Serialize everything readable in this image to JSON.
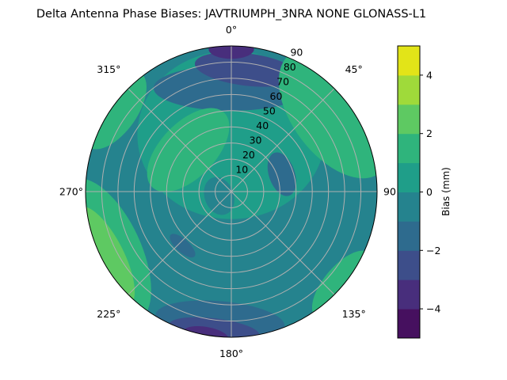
{
  "chart_data": {
    "type": "heatmap",
    "subtype": "polar-contourf",
    "title": "Delta Antenna Phase Biases: JAVTRIUMPH_3NRA NONE GLONASS-L1",
    "angular_ticks": [
      "0°",
      "45°",
      "90",
      "135°",
      "180°",
      "225°",
      "270°",
      "315°"
    ],
    "angular_tick_values": [
      0,
      45,
      90,
      135,
      180,
      225,
      270,
      315
    ],
    "radial_ticks": [
      "10",
      "20",
      "30",
      "40",
      "50",
      "60",
      "70",
      "80",
      "90"
    ],
    "radial_tick_values": [
      10,
      20,
      30,
      40,
      50,
      60,
      70,
      80,
      90
    ],
    "radial_range": [
      0,
      90
    ],
    "grid": true,
    "colorbar": {
      "label": "Bias (mm)",
      "range": [
        -5,
        5
      ],
      "levels": [
        -5,
        -4,
        -3,
        -2,
        -1,
        0,
        1,
        2,
        3,
        4,
        5
      ],
      "tick_labels": [
        "−4",
        "−2",
        "0",
        "2",
        "4"
      ],
      "tick_values": [
        -4,
        -2,
        0,
        2,
        4
      ],
      "colors": [
        "#46105f",
        "#482e7c",
        "#3d4e8a",
        "#2e6b8e",
        "#25838e",
        "#1f9e89",
        "#2fb47c",
        "#5ec962",
        "#9fda3a",
        "#e2e418"
      ]
    },
    "base_level": -0.5,
    "regions": [
      {
        "azimuth": 0,
        "zenith": 35,
        "size": [
          58,
          52
        ],
        "value": 0.5
      },
      {
        "azimuth": 250,
        "zenith": 8,
        "size": [
          12,
          9
        ],
        "value": -0.5
      },
      {
        "azimuth": 0,
        "zenith": 64,
        "size": [
          48,
          14
        ],
        "value": -1.5
      },
      {
        "azimuth": 7,
        "zenith": 76,
        "size": [
          32,
          10
        ],
        "value": -2.5
      },
      {
        "azimuth": 0,
        "zenith": 88,
        "size": [
          14,
          6
        ],
        "value": -3.5
      },
      {
        "azimuth": 185,
        "zenith": 80,
        "size": [
          40,
          12
        ],
        "value": -1.5
      },
      {
        "azimuth": 187,
        "zenith": 86,
        "size": [
          28,
          7
        ],
        "value": -2.5
      },
      {
        "azimuth": 190,
        "zenith": 90,
        "size": [
          14,
          5
        ],
        "value": -3.5
      },
      {
        "azimuth": 71,
        "zenith": 33,
        "size": [
          14,
          8
        ],
        "value": -1.5
      },
      {
        "azimuth": 222,
        "zenith": 45,
        "size": [
          10,
          4
        ],
        "value": -1.5
      },
      {
        "azimuth": 53,
        "zenith": 80,
        "size": [
          46,
          26
        ],
        "value": 1.5
      },
      {
        "azimuth": 314,
        "zenith": 37,
        "size": [
          32,
          17
        ],
        "value": 1.5
      },
      {
        "azimuth": 305,
        "zenith": 88,
        "size": [
          28,
          14
        ],
        "value": 1.5
      },
      {
        "azimuth": 245,
        "zenith": 86,
        "size": [
          48,
          22
        ],
        "value": 1.5
      },
      {
        "azimuth": 243,
        "zenith": 88,
        "size": [
          34,
          12
        ],
        "value": 2.5
      },
      {
        "azimuth": 130,
        "zenith": 90,
        "size": [
          26,
          12
        ],
        "value": 1.5
      }
    ]
  }
}
